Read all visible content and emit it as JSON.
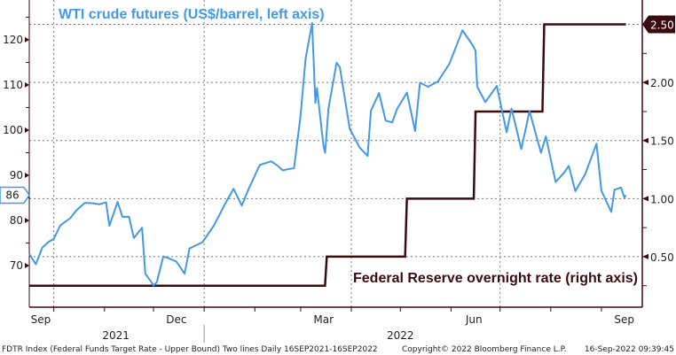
{
  "chart_data": {
    "type": "line",
    "annotations": {
      "oil": "WTI crude futures (US$/barrel, left axis)",
      "rate": "Federal Reserve overnight rate (right axis)"
    },
    "xlim": [
      "2021-09-16",
      "2022-09-26"
    ],
    "x_ticks": [
      {
        "label": "Sep",
        "date": "2021-09-23"
      },
      {
        "label": "Dec",
        "date": "2021-12-15"
      },
      {
        "label": "Mar",
        "date": "2022-03-15"
      },
      {
        "label": "Jun",
        "date": "2022-06-15"
      },
      {
        "label": "Sep",
        "date": "2022-09-15"
      }
    ],
    "x_gridlines": [
      "2021-10-01",
      "2022-01-01",
      "2022-04-01",
      "2022-07-01"
    ],
    "years": [
      {
        "label": "2021",
        "date": "2021-11-08"
      },
      {
        "label": "2022",
        "date": "2022-05-01"
      }
    ],
    "left_axis": {
      "ylim": [
        60.8,
        128.8
      ],
      "ticks": [
        70,
        80,
        90,
        100,
        110,
        120
      ],
      "last_value_tag": "86"
    },
    "right_axis": {
      "ylim": [
        0.065,
        2.71
      ],
      "ticks": [
        "0.50",
        "1.00",
        "1.50",
        "2.00",
        "2.50"
      ],
      "last_value_tag": "2.50"
    },
    "grid": "dotted, horizontal on right-axis ticks",
    "colors": {
      "oil": "#4499e6",
      "rate": "#3b0b12",
      "axis": "#3b0b12"
    },
    "series": [
      {
        "axis": "left",
        "points": [
          [
            "2021-09-16",
            72.6
          ],
          [
            "2021-09-20",
            70.3
          ],
          [
            "2021-09-24",
            74.0
          ],
          [
            "2021-09-28",
            75.3
          ],
          [
            "2021-10-01",
            75.9
          ],
          [
            "2021-10-05",
            78.9
          ],
          [
            "2021-10-11",
            80.5
          ],
          [
            "2021-10-15",
            82.3
          ],
          [
            "2021-10-20",
            83.9
          ],
          [
            "2021-10-25",
            83.8
          ],
          [
            "2021-10-29",
            83.6
          ],
          [
            "2021-11-02",
            84.0
          ],
          [
            "2021-11-04",
            78.8
          ],
          [
            "2021-11-09",
            84.1
          ],
          [
            "2021-11-12",
            80.8
          ],
          [
            "2021-11-16",
            80.8
          ],
          [
            "2021-11-19",
            76.1
          ],
          [
            "2021-11-24",
            78.4
          ],
          [
            "2021-11-26",
            68.2
          ],
          [
            "2021-11-30",
            66.2
          ],
          [
            "2021-12-01",
            65.6
          ],
          [
            "2021-12-03",
            66.3
          ],
          [
            "2021-12-07",
            72.0
          ],
          [
            "2021-12-10",
            71.7
          ],
          [
            "2021-12-15",
            70.9
          ],
          [
            "2021-12-20",
            68.2
          ],
          [
            "2021-12-23",
            73.8
          ],
          [
            "2021-12-31",
            75.2
          ],
          [
            "2022-01-07",
            78.9
          ],
          [
            "2022-01-14",
            83.8
          ],
          [
            "2022-01-19",
            87.0
          ],
          [
            "2022-01-24",
            83.3
          ],
          [
            "2022-01-28",
            86.8
          ],
          [
            "2022-02-04",
            92.3
          ],
          [
            "2022-02-11",
            93.1
          ],
          [
            "2022-02-15",
            92.1
          ],
          [
            "2022-02-18",
            91.1
          ],
          [
            "2022-02-25",
            91.6
          ],
          [
            "2022-03-01",
            103.4
          ],
          [
            "2022-03-04",
            115.7
          ],
          [
            "2022-03-08",
            123.7
          ],
          [
            "2022-03-10",
            106.0
          ],
          [
            "2022-03-11",
            109.3
          ],
          [
            "2022-03-15",
            96.4
          ],
          [
            "2022-03-16",
            95.0
          ],
          [
            "2022-03-18",
            104.7
          ],
          [
            "2022-03-23",
            114.9
          ],
          [
            "2022-03-25",
            113.9
          ],
          [
            "2022-03-31",
            100.3
          ],
          [
            "2022-04-06",
            96.2
          ],
          [
            "2022-04-11",
            94.3
          ],
          [
            "2022-04-13",
            104.3
          ],
          [
            "2022-04-18",
            108.2
          ],
          [
            "2022-04-22",
            102.1
          ],
          [
            "2022-04-26",
            101.7
          ],
          [
            "2022-04-29",
            104.7
          ],
          [
            "2022-05-05",
            108.3
          ],
          [
            "2022-05-10",
            99.8
          ],
          [
            "2022-05-13",
            110.5
          ],
          [
            "2022-05-18",
            109.6
          ],
          [
            "2022-05-24",
            110.8
          ],
          [
            "2022-05-31",
            114.7
          ],
          [
            "2022-06-08",
            122.1
          ],
          [
            "2022-06-14",
            118.9
          ],
          [
            "2022-06-16",
            117.6
          ],
          [
            "2022-06-17",
            109.6
          ],
          [
            "2022-06-22",
            106.2
          ],
          [
            "2022-06-29",
            109.8
          ],
          [
            "2022-07-05",
            99.5
          ],
          [
            "2022-07-08",
            104.8
          ],
          [
            "2022-07-14",
            95.8
          ],
          [
            "2022-07-19",
            104.2
          ],
          [
            "2022-07-26",
            95.0
          ],
          [
            "2022-07-29",
            98.6
          ],
          [
            "2022-08-04",
            88.5
          ],
          [
            "2022-08-09",
            90.5
          ],
          [
            "2022-08-12",
            92.1
          ],
          [
            "2022-08-16",
            86.5
          ],
          [
            "2022-08-22",
            90.2
          ],
          [
            "2022-08-29",
            97.0
          ],
          [
            "2022-09-01",
            86.6
          ],
          [
            "2022-09-07",
            81.9
          ],
          [
            "2022-09-09",
            86.8
          ],
          [
            "2022-09-13",
            87.3
          ],
          [
            "2022-09-15",
            85.1
          ],
          [
            "2022-09-16",
            85.6
          ]
        ]
      },
      {
        "axis": "right",
        "steps": [
          [
            "2021-09-16",
            0.25
          ],
          [
            "2022-03-17",
            0.5
          ],
          [
            "2022-05-05",
            1.0
          ],
          [
            "2022-06-16",
            1.75
          ],
          [
            "2022-07-28",
            2.5
          ],
          [
            "2022-09-16",
            2.5
          ]
        ]
      }
    ]
  },
  "footer": {
    "description": "FDTR Index (Federal Funds Target Rate - Upper Bound) Two lines  Daily 16SEP2021-16SEP2022",
    "copyright": "Copyright© 2022 Bloomberg Finance L.P.",
    "timestamp": "16-Sep-2022 09:39:45"
  }
}
